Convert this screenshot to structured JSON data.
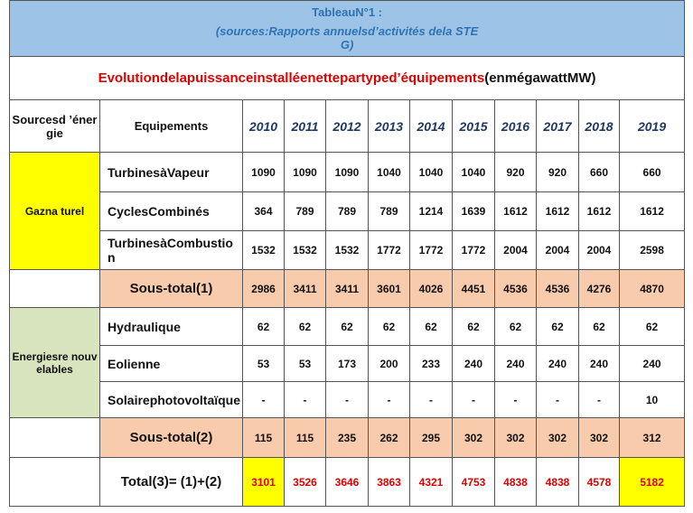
{
  "header": {
    "title": "TableauN°1 :",
    "source": "(sources:Rapports annuelsd’activités dela STEG)"
  },
  "table": {
    "title": "Evolutiondelapuissanceinstalléenettepartyped’équipements",
    "unit": "(enmégawattMW)",
    "columns": [
      "Sourcesd ’énergie",
      "Equipements",
      "2010",
      "2011",
      "2012",
      "2013",
      "2014",
      "2015",
      "2016",
      "2017",
      "2018",
      "2019"
    ],
    "groups": [
      {
        "label": "Gazna turel",
        "color": "#ffff00",
        "rows": [
          {
            "label": "TurbinesàVapeur",
            "values": [
              1090,
              1090,
              1090,
              1040,
              1040,
              1040,
              920,
              920,
              660,
              660
            ]
          },
          {
            "label": "CyclesCombinés",
            "values": [
              364,
              789,
              789,
              789,
              1214,
              1639,
              1612,
              1612,
              1612,
              1612
            ]
          },
          {
            "label": "TurbinesàCombustion",
            "values": [
              1532,
              1532,
              1532,
              1772,
              1772,
              1772,
              2004,
              2004,
              2004,
              2598
            ]
          }
        ],
        "subtotal": {
          "label": "Sous-total(1)",
          "values": [
            2986,
            3411,
            3411,
            3601,
            4026,
            4451,
            4536,
            4536,
            4276,
            4870
          ]
        }
      },
      {
        "label": "Energiesre nouvelables",
        "color": "#d7e4bd",
        "rows": [
          {
            "label": "Hydraulique",
            "values": [
              62,
              62,
              62,
              62,
              62,
              62,
              62,
              62,
              62,
              62
            ]
          },
          {
            "label": "Eolienne",
            "values": [
              53,
              53,
              173,
              200,
              233,
              240,
              240,
              240,
              240,
              240
            ]
          },
          {
            "label": "Solairephotovoltaïque",
            "values": [
              "-",
              "-",
              "-",
              "-",
              "-",
              "-",
              "-",
              "-",
              "-",
              10
            ]
          }
        ],
        "subtotal": {
          "label": "Sous-total(2)",
          "values": [
            115,
            115,
            235,
            262,
            295,
            302,
            302,
            302,
            302,
            312
          ]
        }
      }
    ],
    "total": {
      "label": "Total(3)= (1)+(2)",
      "values": [
        3101,
        3526,
        3646,
        3863,
        4321,
        4753,
        4838,
        4838,
        4578,
        5182
      ]
    }
  }
}
